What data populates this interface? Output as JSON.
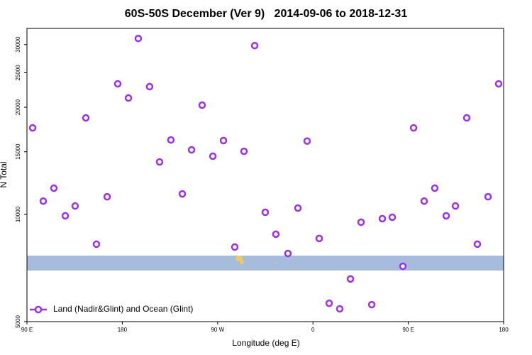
{
  "chart_data": {
    "type": "scatter",
    "title": "60S-50S December (Ver 9)   2014-09-06 to 2018-12-31",
    "x_label": "Longitude (deg E)",
    "y_label": "N Total",
    "xlim": [
      90,
      540
    ],
    "xticks": [
      {
        "value": 90,
        "label": "90 E"
      },
      180,
      {
        "value": 270,
        "label": "90 W"
      },
      {
        "value": 360,
        "label": "0"
      },
      {
        "value": 450,
        "label": "90 E"
      },
      {
        "value": 540,
        "label": "180"
      }
    ],
    "ylim": [
      5000,
      33300
    ],
    "log_y": true,
    "yticks": [
      5000,
      10000,
      15000,
      20000,
      25000,
      30000
    ],
    "legend": "bottom-left",
    "series": [
      {
        "name": "Land (Nadir&Glint) and Ocean (Glint)",
        "color": "#9b30e8",
        "x": [
          95.4,
          105.4,
          115.4,
          126.2,
          135.5,
          145.6,
          155.6,
          165.7,
          175.7,
          185.8,
          195.1,
          205.8,
          215.2,
          225.9,
          236.7,
          245.4,
          255.4,
          265.5,
          275.5,
          286.2,
          294.9,
          305,
          315,
          325,
          336.4,
          345.8,
          354.5,
          365.9,
          375.3,
          385.3,
          395.4,
          405.4,
          415.5,
          425.5,
          434.9,
          444.9,
          455,
          465,
          475,
          485.8,
          494.5,
          505.2,
          515.2,
          525.3,
          535.3
        ],
        "values": [
          17500,
          10900,
          11850,
          9910,
          10560,
          18670,
          8250,
          11210,
          23270,
          21230,
          31200,
          22850,
          14040,
          16190,
          11420,
          15180,
          20270,
          14570,
          16120,
          8100,
          15040,
          29800,
          10140,
          8800,
          7770,
          10420,
          16070,
          8560,
          5630,
          5430,
          6590,
          9510,
          5580,
          9730,
          9820,
          7150,
          17500,
          10900,
          11850,
          9910,
          10560,
          18670,
          8250,
          11210,
          23270
        ]
      }
    ]
  }
}
